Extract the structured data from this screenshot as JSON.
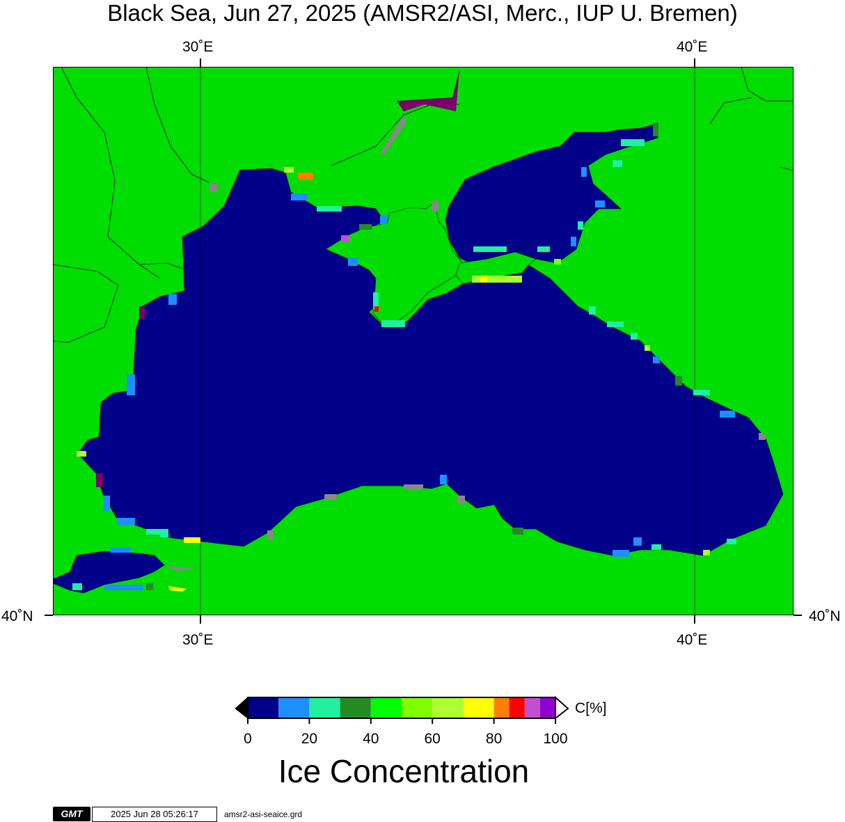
{
  "title": "Black Sea, Jun 27, 2025 (AMSR2/ASI, Merc., IUP U. Bremen)",
  "map": {
    "lon_labels_top": [
      "30˚E",
      "40˚E"
    ],
    "lon_labels_bottom": [
      "30˚E",
      "40˚E"
    ],
    "lat_labels": [
      "40˚N",
      "40˚N"
    ],
    "colors": {
      "land": "#00dd00",
      "sea_ice_free": "#000088",
      "coast": "#000000",
      "frame": "#000000"
    }
  },
  "colorbar": {
    "unit": "C[%]",
    "title": "Ice Concentration",
    "tick_labels": [
      "0",
      "20",
      "40",
      "60",
      "80",
      "100"
    ],
    "bins": [
      {
        "from": 0,
        "to": 10,
        "color": "#000088"
      },
      {
        "from": 10,
        "to": 20,
        "color": "#1e8fff"
      },
      {
        "from": 20,
        "to": 30,
        "color": "#20f0a0"
      },
      {
        "from": 30,
        "to": 40,
        "color": "#228b22"
      },
      {
        "from": 40,
        "to": 50,
        "color": "#00ff00"
      },
      {
        "from": 50,
        "to": 60,
        "color": "#7fff00"
      },
      {
        "from": 60,
        "to": 70,
        "color": "#adff2f"
      },
      {
        "from": 70,
        "to": 80,
        "color": "#ffff00"
      },
      {
        "from": 80,
        "to": 85,
        "color": "#ff7f00"
      },
      {
        "from": 85,
        "to": 90,
        "color": "#ff0000"
      },
      {
        "from": 90,
        "to": 95,
        "color": "#c050d0"
      },
      {
        "from": 95,
        "to": 100,
        "color": "#9000d0"
      }
    ]
  },
  "footer": {
    "logo_text": "GMT",
    "timestamp": "2025 Jun 28 05:26:17",
    "grid_file": "amsr2-asi-seaice.grd"
  }
}
